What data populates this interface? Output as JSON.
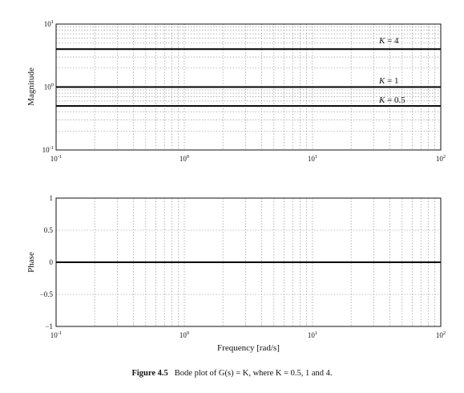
{
  "chart_data": [
    {
      "type": "line",
      "xscale": "log",
      "yscale": "log",
      "xlim": [
        0.1,
        100
      ],
      "ylim": [
        0.1,
        10
      ],
      "grid": true,
      "xlabel": "",
      "ylabel": "Magnitude",
      "xticks": [
        0.1,
        1,
        10,
        100
      ],
      "yticks": [
        0.1,
        1,
        10
      ],
      "series": [
        {
          "name": "K = 4",
          "x": [
            0.1,
            100
          ],
          "values": [
            4,
            4
          ]
        },
        {
          "name": "K = 1",
          "x": [
            0.1,
            100
          ],
          "values": [
            1,
            1
          ]
        },
        {
          "name": "K = 0.5",
          "x": [
            0.1,
            100
          ],
          "values": [
            0.5,
            0.5
          ]
        }
      ]
    },
    {
      "type": "line",
      "xscale": "log",
      "yscale": "linear",
      "xlim": [
        0.1,
        100
      ],
      "ylim": [
        -1,
        1
      ],
      "grid": true,
      "xlabel": "Frequency [rad/s]",
      "ylabel": "Phase",
      "xticks": [
        0.1,
        1,
        10,
        100
      ],
      "yticks": [
        -1,
        -0.5,
        0,
        0.5,
        1
      ],
      "series": [
        {
          "x": [
            0.1,
            100
          ],
          "values": [
            0,
            0
          ]
        }
      ]
    }
  ],
  "labels": {
    "k4": {
      "sym": "K",
      "rest": " = 4"
    },
    "k1": {
      "sym": "K",
      "rest": " = 1"
    },
    "k05": {
      "sym": "K",
      "rest": " = 0.5"
    }
  },
  "tick_text": {
    "m1": "−1",
    "m05": "−0.5",
    "zero": "0",
    "p05": "0.5",
    "one": "1",
    "base": "10",
    "exp_m1": "-1",
    "exp_0": "0",
    "exp_1": "1",
    "exp_2": "2"
  },
  "caption": {
    "number": "Figure 4.5",
    "text": "Bode plot of G(s) = K, where K = 0.5, 1 and 4."
  }
}
